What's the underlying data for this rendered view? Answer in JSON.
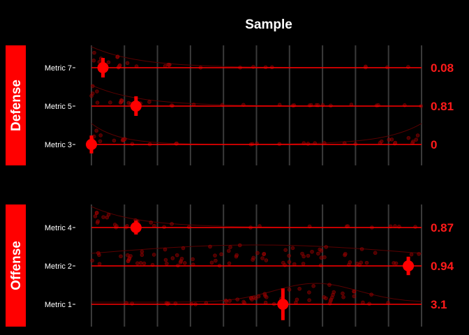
{
  "chart_data": {
    "type": "scatter",
    "title": "Sample",
    "xlim": [
      0,
      10
    ],
    "grid": true,
    "colors": {
      "accent": "#ff0000",
      "background": "#000000",
      "grid": "#3a3a3a",
      "text": "#ffffff"
    },
    "groups": [
      {
        "name": "Defense",
        "rows": [
          {
            "label": "Metric 7",
            "value_label": "0.08",
            "point": 0.35,
            "ci": [
              0.1,
              0.6
            ],
            "density_peak": "left",
            "spread": [
              0,
              10
            ]
          },
          {
            "label": "Metric 5",
            "value_label": "0.81",
            "point": 1.35,
            "ci": [
              1.1,
              1.6
            ],
            "density_peak": "left",
            "spread": [
              0,
              10
            ]
          },
          {
            "label": "Metric 3",
            "value_label": "0",
            "point": 0.0,
            "ci": [
              0.0,
              0.35
            ],
            "density_peak": "both",
            "spread": [
              0,
              10
            ]
          }
        ]
      },
      {
        "name": "Offense",
        "rows": [
          {
            "label": "Metric 4",
            "value_label": "0.87",
            "point": 1.35,
            "ci": [
              1.35,
              1.35
            ],
            "density_peak": "left",
            "spread": [
              0,
              10
            ]
          },
          {
            "label": "Metric 2",
            "value_label": "0.94",
            "point": 9.6,
            "ci": [
              9.4,
              9.8
            ],
            "density_peak": "middle",
            "spread": [
              0,
              10
            ]
          },
          {
            "label": "Metric 1",
            "value_label": "3.1",
            "point": 5.8,
            "ci": [
              5.0,
              6.6
            ],
            "density_peak": "right-middle",
            "spread": [
              1,
              9
            ]
          }
        ]
      }
    ]
  }
}
